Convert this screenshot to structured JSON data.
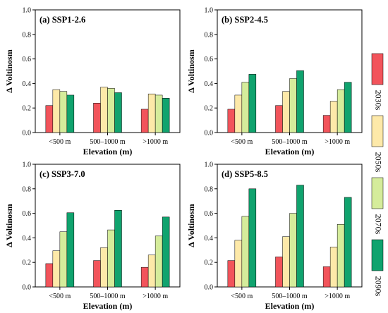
{
  "chart_data": {
    "type": "bar",
    "categories": [
      "<500 m",
      "500–1000 m",
      ">1000 m"
    ],
    "xlabel": "Elevation (m)",
    "ylabel": "Δ Voltinosm",
    "ylim": [
      0,
      1.0
    ],
    "yticks": [
      "0.0",
      "0.2",
      "0.4",
      "0.6",
      "0.8",
      "1.0"
    ],
    "legend": {
      "placement": "right",
      "entries": [
        {
          "name": "2030s",
          "color": "#f2545b"
        },
        {
          "name": "2050s",
          "color": "#fde9a9"
        },
        {
          "name": "2070s",
          "color": "#d5ec9b"
        },
        {
          "name": "2090s",
          "color": "#10a36e"
        }
      ]
    },
    "panels": [
      {
        "title": "(a) SSP1-2.6",
        "series": [
          {
            "name": "2030s",
            "values": [
              0.22,
              0.24,
              0.19
            ]
          },
          {
            "name": "2050s",
            "values": [
              0.35,
              0.37,
              0.315
            ]
          },
          {
            "name": "2070s",
            "values": [
              0.335,
              0.36,
              0.305
            ]
          },
          {
            "name": "2090s",
            "values": [
              0.305,
              0.325,
              0.28
            ]
          }
        ]
      },
      {
        "title": "(b) SSP2-4.5",
        "series": [
          {
            "name": "2030s",
            "values": [
              0.19,
              0.22,
              0.14
            ]
          },
          {
            "name": "2050s",
            "values": [
              0.305,
              0.335,
              0.255
            ]
          },
          {
            "name": "2070s",
            "values": [
              0.41,
              0.44,
              0.35
            ]
          },
          {
            "name": "2090s",
            "values": [
              0.475,
              0.505,
              0.41
            ]
          }
        ]
      },
      {
        "title": "(c) SSP3-7.0",
        "series": [
          {
            "name": "2030s",
            "values": [
              0.19,
              0.215,
              0.16
            ]
          },
          {
            "name": "2050s",
            "values": [
              0.295,
              0.32,
              0.26
            ]
          },
          {
            "name": "2070s",
            "values": [
              0.45,
              0.465,
              0.415
            ]
          },
          {
            "name": "2090s",
            "values": [
              0.605,
              0.625,
              0.57
            ]
          }
        ]
      },
      {
        "title": "(d) SSP5-8.5",
        "series": [
          {
            "name": "2030s",
            "values": [
              0.215,
              0.245,
              0.165
            ]
          },
          {
            "name": "2050s",
            "values": [
              0.38,
              0.41,
              0.325
            ]
          },
          {
            "name": "2070s",
            "values": [
              0.575,
              0.6,
              0.51
            ]
          },
          {
            "name": "2090s",
            "values": [
              0.8,
              0.83,
              0.73
            ]
          }
        ]
      }
    ]
  }
}
